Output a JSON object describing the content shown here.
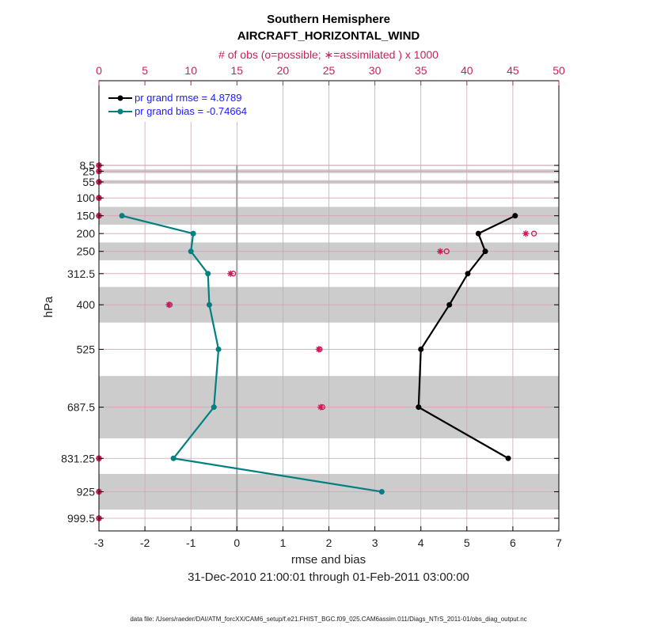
{
  "chart_data": {
    "type": "line",
    "title": "Southern Hemisphere",
    "subtitle": "AIRCRAFT_HORIZONTAL_WIND",
    "top_axis_label": "# of obs (o=possible; ∗=assimilated ) x 1000",
    "xlabel": "rmse and bias",
    "ylabel": "hPa",
    "date_range": "31-Dec-2010 21:00:01 through 01-Feb-2011 03:00:00",
    "footer": "data file: /Users/raeder/DAI/ATM_forcXX/CAM6_setup/f.e21.FHIST_BGC.f09_025.CAM6assim.011/Diags_NTrS_2011-01/obs_diag_output.nc",
    "xlim": [
      -3,
      7
    ],
    "x_ticks": [
      "-3",
      "-2",
      "-1",
      "0",
      "1",
      "2",
      "3",
      "4",
      "5",
      "6",
      "7"
    ],
    "top_xlim": [
      0,
      50
    ],
    "top_ticks": [
      "0",
      "5",
      "10",
      "15",
      "20",
      "25",
      "30",
      "35",
      "40",
      "45",
      "50"
    ],
    "levels": [
      8.5,
      25,
      55,
      100,
      150,
      200,
      250,
      312.5,
      400,
      525,
      687.5,
      831.25,
      925,
      999.5
    ],
    "level_labels": [
      "8.5",
      "25",
      "55",
      "100",
      "150",
      "200",
      "250",
      "312.5",
      "400",
      "525",
      "687.5",
      "831.25",
      "925",
      "999.5"
    ],
    "shaded_bands": [
      [
        7,
        10
      ],
      [
        20,
        30
      ],
      [
        50,
        60
      ],
      [
        125,
        175
      ],
      [
        225,
        275
      ],
      [
        350,
        450
      ],
      [
        600,
        775
      ],
      [
        875,
        975
      ]
    ],
    "legend": [
      {
        "label": "pr grand rmse = 4.8789",
        "color": "#000000"
      },
      {
        "label": "pr grand bias = -0.74664",
        "color": "#008080"
      }
    ],
    "series": [
      {
        "name": "rmse",
        "color": "#000000",
        "points": [
          [
            6.05,
            150
          ],
          [
            5.25,
            200
          ],
          [
            5.4,
            250
          ],
          [
            5.02,
            312.5
          ],
          [
            4.62,
            400
          ],
          [
            4.0,
            525
          ],
          [
            3.95,
            687.5
          ],
          [
            5.9,
            831.25
          ]
        ]
      },
      {
        "name": "bias",
        "color": "#008080",
        "points": [
          [
            -2.5,
            150
          ],
          [
            -0.95,
            200
          ],
          [
            -1.0,
            250
          ],
          [
            -0.63,
            312.5
          ],
          [
            -0.6,
            400
          ],
          [
            -0.4,
            525
          ],
          [
            -0.5,
            687.5
          ],
          [
            -1.38,
            831.25
          ],
          [
            3.15,
            925
          ]
        ]
      }
    ],
    "obs_possible": [
      [
        0,
        8.5
      ],
      [
        0,
        25
      ],
      [
        0,
        55
      ],
      [
        0,
        100
      ],
      [
        0,
        150
      ],
      [
        47.3,
        200
      ],
      [
        37.8,
        250
      ],
      [
        14.6,
        312.5
      ],
      [
        7.7,
        400
      ],
      [
        24.0,
        525
      ],
      [
        24.3,
        687.5
      ],
      [
        0,
        831.25
      ],
      [
        0,
        925
      ],
      [
        0,
        999.5
      ]
    ],
    "obs_assimilated": [
      [
        0,
        8.5
      ],
      [
        0,
        25
      ],
      [
        0,
        55
      ],
      [
        0,
        100
      ],
      [
        0,
        150
      ],
      [
        46.4,
        200
      ],
      [
        37.1,
        250
      ],
      [
        14.3,
        312.5
      ],
      [
        7.6,
        400
      ],
      [
        23.9,
        525
      ],
      [
        24.1,
        687.5
      ],
      [
        0,
        831.25
      ],
      [
        0,
        925
      ],
      [
        0,
        999.5
      ]
    ]
  }
}
